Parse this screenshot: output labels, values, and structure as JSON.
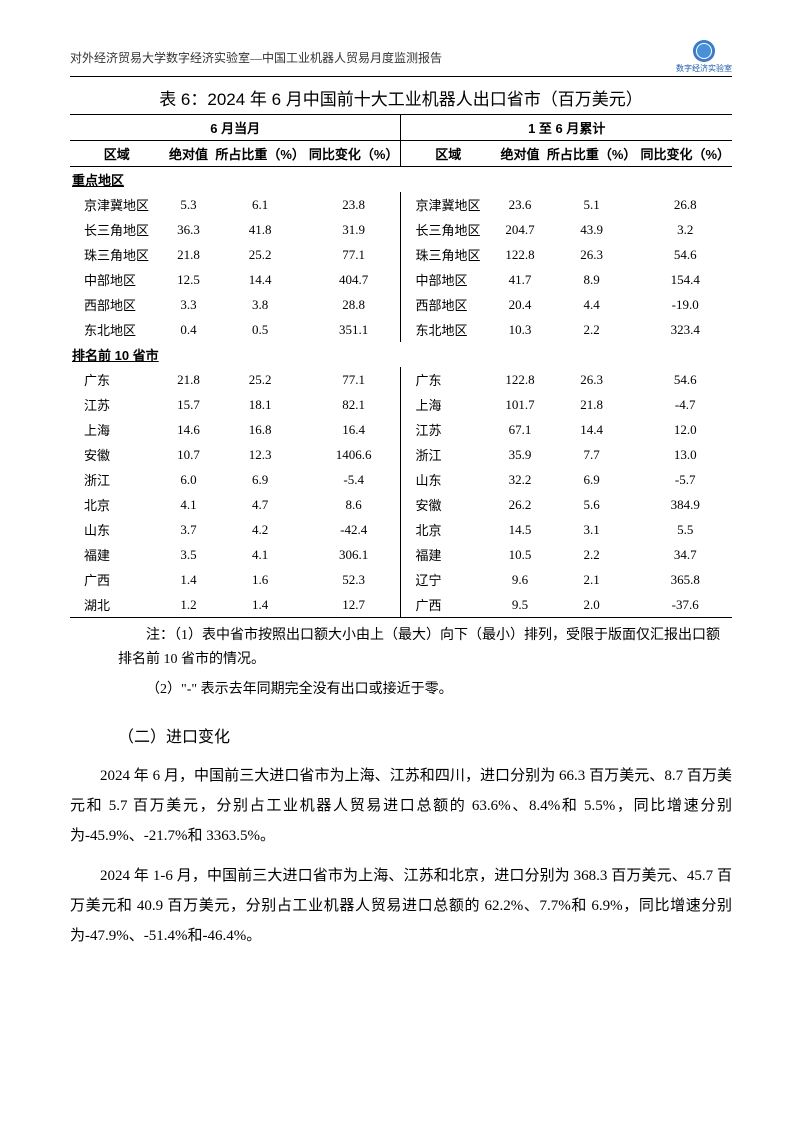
{
  "header": {
    "text": "对外经济贸易大学数字经济实验室—中国工业机器人贸易月度监测报告",
    "logo_label": "数字经济实验室"
  },
  "table": {
    "title": "表 6：2024 年 6 月中国前十大工业机器人出口省市（百万美元）",
    "group_left": "6 月当月",
    "group_right": "1 至 6 月累计",
    "col_region": "区域",
    "col_abs": "绝对值",
    "col_share": "所占比重（%）",
    "col_yoy": "同比变化（%）",
    "section1": "重点地区",
    "section2": "排名前 10 省市",
    "key_regions": [
      {
        "l_name": "京津冀地区",
        "l_abs": "5.3",
        "l_share": "6.1",
        "l_yoy": "23.8",
        "r_name": "京津冀地区",
        "r_abs": "23.6",
        "r_share": "5.1",
        "r_yoy": "26.8"
      },
      {
        "l_name": "长三角地区",
        "l_abs": "36.3",
        "l_share": "41.8",
        "l_yoy": "31.9",
        "r_name": "长三角地区",
        "r_abs": "204.7",
        "r_share": "43.9",
        "r_yoy": "3.2"
      },
      {
        "l_name": "珠三角地区",
        "l_abs": "21.8",
        "l_share": "25.2",
        "l_yoy": "77.1",
        "r_name": "珠三角地区",
        "r_abs": "122.8",
        "r_share": "26.3",
        "r_yoy": "54.6"
      },
      {
        "l_name": "中部地区",
        "l_abs": "12.5",
        "l_share": "14.4",
        "l_yoy": "404.7",
        "r_name": "中部地区",
        "r_abs": "41.7",
        "r_share": "8.9",
        "r_yoy": "154.4"
      },
      {
        "l_name": "西部地区",
        "l_abs": "3.3",
        "l_share": "3.8",
        "l_yoy": "28.8",
        "r_name": "西部地区",
        "r_abs": "20.4",
        "r_share": "4.4",
        "r_yoy": "-19.0"
      },
      {
        "l_name": "东北地区",
        "l_abs": "0.4",
        "l_share": "0.5",
        "l_yoy": "351.1",
        "r_name": "东北地区",
        "r_abs": "10.3",
        "r_share": "2.2",
        "r_yoy": "323.4"
      }
    ],
    "top10": [
      {
        "l_name": "广东",
        "l_abs": "21.8",
        "l_share": "25.2",
        "l_yoy": "77.1",
        "r_name": "广东",
        "r_abs": "122.8",
        "r_share": "26.3",
        "r_yoy": "54.6"
      },
      {
        "l_name": "江苏",
        "l_abs": "15.7",
        "l_share": "18.1",
        "l_yoy": "82.1",
        "r_name": "上海",
        "r_abs": "101.7",
        "r_share": "21.8",
        "r_yoy": "-4.7"
      },
      {
        "l_name": "上海",
        "l_abs": "14.6",
        "l_share": "16.8",
        "l_yoy": "16.4",
        "r_name": "江苏",
        "r_abs": "67.1",
        "r_share": "14.4",
        "r_yoy": "12.0"
      },
      {
        "l_name": "安徽",
        "l_abs": "10.7",
        "l_share": "12.3",
        "l_yoy": "1406.6",
        "r_name": "浙江",
        "r_abs": "35.9",
        "r_share": "7.7",
        "r_yoy": "13.0"
      },
      {
        "l_name": "浙江",
        "l_abs": "6.0",
        "l_share": "6.9",
        "l_yoy": "-5.4",
        "r_name": "山东",
        "r_abs": "32.2",
        "r_share": "6.9",
        "r_yoy": "-5.7"
      },
      {
        "l_name": "北京",
        "l_abs": "4.1",
        "l_share": "4.7",
        "l_yoy": "8.6",
        "r_name": "安徽",
        "r_abs": "26.2",
        "r_share": "5.6",
        "r_yoy": "384.9"
      },
      {
        "l_name": "山东",
        "l_abs": "3.7",
        "l_share": "4.2",
        "l_yoy": "-42.4",
        "r_name": "北京",
        "r_abs": "14.5",
        "r_share": "3.1",
        "r_yoy": "5.5"
      },
      {
        "l_name": "福建",
        "l_abs": "3.5",
        "l_share": "4.1",
        "l_yoy": "306.1",
        "r_name": "福建",
        "r_abs": "10.5",
        "r_share": "2.2",
        "r_yoy": "34.7"
      },
      {
        "l_name": "广西",
        "l_abs": "1.4",
        "l_share": "1.6",
        "l_yoy": "52.3",
        "r_name": "辽宁",
        "r_abs": "9.6",
        "r_share": "2.1",
        "r_yoy": "365.8"
      },
      {
        "l_name": "湖北",
        "l_abs": "1.2",
        "l_share": "1.4",
        "l_yoy": "12.7",
        "r_name": "广西",
        "r_abs": "9.5",
        "r_share": "2.0",
        "r_yoy": "-37.6"
      }
    ],
    "note1": "注：（1）表中省市按照出口额大小由上（最大）向下（最小）排列，受限于版面仅汇报出口额排名前 10 省市的情况。",
    "note2": "（2）\"-\" 表示去年同期完全没有出口或接近于零。"
  },
  "body": {
    "heading": "（二）进口变化",
    "p1": "2024 年 6 月，中国前三大进口省市为上海、江苏和四川，进口分别为 66.3 百万美元、8.7 百万美元和 5.7 百万美元，分别占工业机器人贸易进口总额的 63.6%、8.4%和 5.5%，同比增速分别为-45.9%、-21.7%和 3363.5%。",
    "p2": "2024 年 1-6 月，中国前三大进口省市为上海、江苏和北京，进口分别为 368.3 百万美元、45.7 百万美元和 40.9 百万美元，分别占工业机器人贸易进口总额的 62.2%、7.7%和 6.9%，同比增速分别为-47.9%、-51.4%和-46.4%。"
  },
  "colors": {
    "text": "#000000",
    "background": "#ffffff",
    "border": "#000000",
    "logo_blue": "#1e5aa8"
  }
}
